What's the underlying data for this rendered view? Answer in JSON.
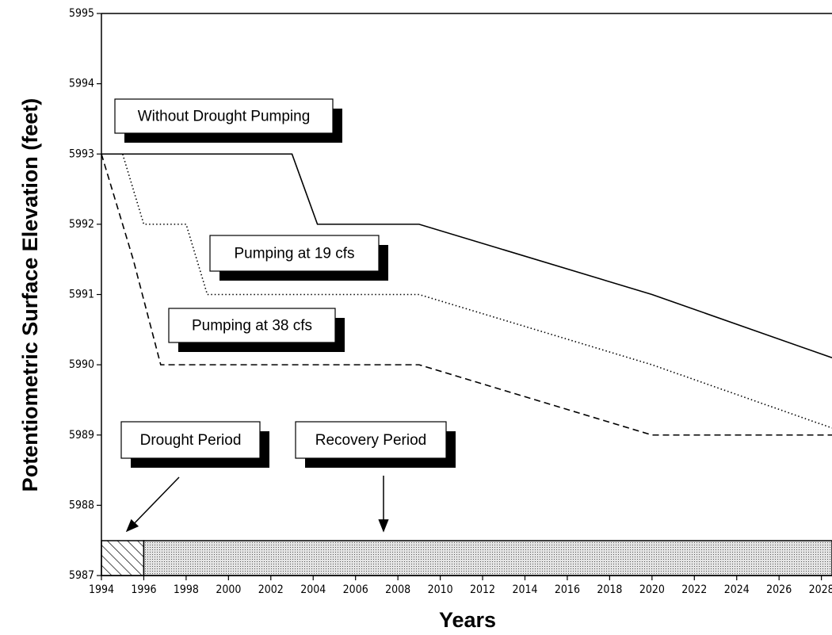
{
  "chart_data": {
    "type": "line",
    "xlabel": "Years",
    "ylabel": "Potentiometric Surface Elevation (feet)",
    "xlim": [
      1994,
      2028.5
    ],
    "ylim": [
      5987,
      5995
    ],
    "xticks": [
      1994,
      1996,
      1998,
      2000,
      2002,
      2004,
      2006,
      2008,
      2010,
      2012,
      2014,
      2016,
      2018,
      2020,
      2022,
      2024,
      2026,
      2028
    ],
    "yticks": [
      5987,
      5988,
      5989,
      5990,
      5991,
      5992,
      5993,
      5994,
      5995
    ],
    "series": [
      {
        "name": "Without Drought Pumping",
        "color": "#000000",
        "style": "solid",
        "x": [
          1994,
          2003,
          2004.2,
          2009,
          2020,
          2028.5
        ],
        "values": [
          5993,
          5993,
          5992,
          5992,
          5991,
          5990.1
        ]
      },
      {
        "name": "Pumping at 19 cfs",
        "color": "#000000",
        "style": "dotted",
        "x": [
          1994,
          1995,
          1996,
          1998,
          1999,
          2009,
          2020,
          2028.5
        ],
        "values": [
          5993,
          5993,
          5992,
          5992,
          5991,
          5991,
          5990,
          5989.1
        ]
      },
      {
        "name": "Pumping at 38 cfs",
        "color": "#000000",
        "style": "dashed",
        "x": [
          1994,
          1995.5,
          1996.8,
          2009,
          2020,
          2028.5
        ],
        "values": [
          5993,
          5991.5,
          5990,
          5990,
          5989,
          5989
        ]
      }
    ],
    "periods": [
      {
        "name": "Drought Period",
        "start": 1994,
        "end": 1996,
        "fill": "hatch"
      },
      {
        "name": "Recovery Period",
        "start": 1996,
        "end": 2028.5,
        "fill": "stipple"
      }
    ]
  }
}
